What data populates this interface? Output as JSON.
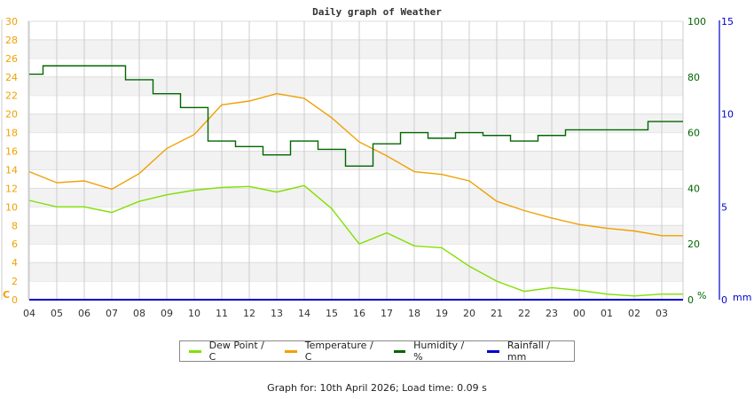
{
  "chart_data": {
    "type": "line",
    "title": "Daily graph of Weather",
    "x": [
      "04",
      "05",
      "06",
      "07",
      "08",
      "09",
      "10",
      "11",
      "12",
      "13",
      "14",
      "15",
      "16",
      "17",
      "18",
      "19",
      "20",
      "21",
      "22",
      "23",
      "00",
      "01",
      "02",
      "03"
    ],
    "axes": {
      "left": {
        "label": "C",
        "ticks": [
          0,
          2,
          4,
          6,
          8,
          10,
          12,
          14,
          16,
          18,
          20,
          22,
          24,
          26,
          28,
          30
        ],
        "range": [
          0,
          30
        ],
        "color": "#f0a000"
      },
      "humidity": {
        "label": "%",
        "ticks": [
          0,
          20,
          40,
          60,
          80,
          100
        ],
        "range": [
          0,
          100
        ],
        "color": "#006600"
      },
      "rainfall": {
        "label": "mm",
        "ticks": [
          0,
          5,
          10,
          15
        ],
        "range": [
          0,
          15
        ],
        "color": "#0000cc"
      }
    },
    "series": [
      {
        "name": "Dew Point / C",
        "axis": "left",
        "color": "#80e000",
        "values": [
          10.7,
          10.0,
          10.0,
          9.4,
          10.6,
          11.3,
          11.8,
          12.1,
          12.2,
          11.6,
          12.3,
          9.8,
          6.0,
          7.2,
          5.8,
          5.6,
          3.6,
          2.0,
          0.9,
          1.3,
          1.0,
          0.6,
          0.4,
          0.6
        ]
      },
      {
        "name": "Temperature / C",
        "axis": "left",
        "color": "#f0a000",
        "values": [
          13.8,
          12.6,
          12.8,
          11.9,
          13.6,
          16.3,
          17.8,
          21.0,
          21.4,
          22.2,
          21.7,
          19.6,
          17.0,
          15.5,
          13.8,
          13.5,
          12.8,
          10.6,
          9.6,
          8.8,
          8.1,
          7.7,
          7.4,
          6.9
        ]
      },
      {
        "name": "Humidity / %",
        "axis": "humidity",
        "color": "#006600",
        "values": [
          81,
          84,
          84,
          84,
          79,
          74,
          69,
          57,
          55,
          52,
          57,
          54,
          48,
          56,
          60,
          58,
          60,
          59,
          57,
          59,
          61,
          61,
          61,
          64
        ]
      },
      {
        "name": "Rainfall / mm",
        "axis": "rainfall",
        "color": "#0000cc",
        "values": [
          0,
          0,
          0,
          0,
          0,
          0,
          0,
          0,
          0,
          0,
          0,
          0,
          0,
          0,
          0,
          0,
          0,
          0,
          0,
          0,
          0,
          0,
          0,
          0
        ]
      }
    ],
    "grid": true,
    "legend_position": "bottom"
  },
  "legend": {
    "items": [
      {
        "label": "Dew Point / C",
        "color": "#80e000"
      },
      {
        "label": "Temperature / C",
        "color": "#f0a000"
      },
      {
        "label": "Humidity / %",
        "color": "#006600"
      },
      {
        "label": "Rainfall / mm",
        "color": "#0000cc"
      }
    ]
  },
  "footer": {
    "text": "Graph for: 10th April 2026; Load time: 0.09 s"
  }
}
